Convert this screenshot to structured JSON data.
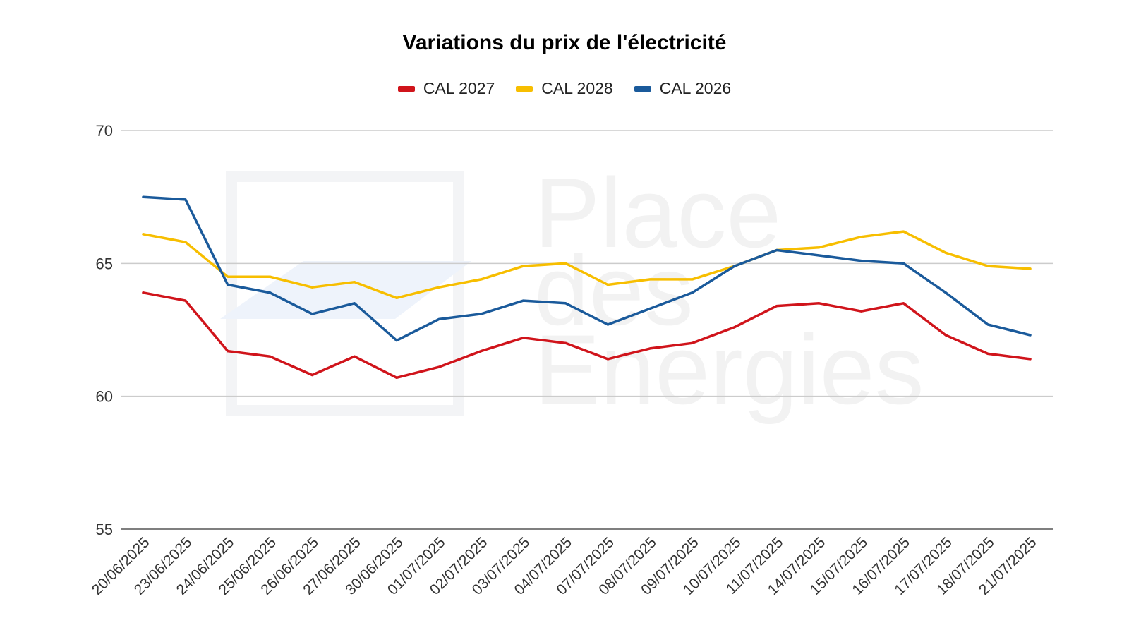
{
  "chart_data": {
    "type": "line",
    "title": "Variations du prix de l'électricité",
    "xlabel": "",
    "ylabel": "",
    "ylim": [
      55,
      70
    ],
    "yticks": [
      "55",
      "60",
      "65",
      "70"
    ],
    "grid": true,
    "legend_position": "top",
    "categories": [
      "20/06/2025",
      "23/06/2025",
      "24/06/2025",
      "25/06/2025",
      "26/06/2025",
      "27/06/2025",
      "30/06/2025",
      "01/07/2025",
      "02/07/2025",
      "03/07/2025",
      "04/07/2025",
      "07/07/2025",
      "08/07/2025",
      "09/07/2025",
      "10/07/2025",
      "11/07/2025",
      "14/07/2025",
      "15/07/2025",
      "16/07/2025",
      "17/07/2025",
      "18/07/2025",
      "21/07/2025"
    ],
    "series": [
      {
        "name": "CAL 2027",
        "color": "#d0141b",
        "values": [
          63.9,
          63.6,
          61.7,
          61.5,
          60.8,
          61.5,
          60.7,
          61.1,
          61.7,
          62.2,
          62.0,
          61.4,
          61.8,
          62.0,
          62.6,
          63.4,
          63.5,
          63.2,
          63.5,
          62.3,
          61.6,
          61.4
        ]
      },
      {
        "name": "CAL 2028",
        "color": "#f7be00",
        "values": [
          66.1,
          65.8,
          64.5,
          64.5,
          64.1,
          64.3,
          63.7,
          64.1,
          64.4,
          64.9,
          65.0,
          64.2,
          64.4,
          64.4,
          64.9,
          65.5,
          65.6,
          66.0,
          66.2,
          65.4,
          64.9,
          64.8
        ]
      },
      {
        "name": "CAL 2026",
        "color": "#1a5a9b",
        "values": [
          67.5,
          67.4,
          64.2,
          63.9,
          63.1,
          63.5,
          62.1,
          62.9,
          63.1,
          63.6,
          63.5,
          62.7,
          63.3,
          63.9,
          64.9,
          65.5,
          65.3,
          65.1,
          65.0,
          63.9,
          62.7,
          62.3
        ]
      }
    ]
  },
  "watermark": {
    "lines": [
      "Place",
      "des",
      "Energies"
    ]
  }
}
